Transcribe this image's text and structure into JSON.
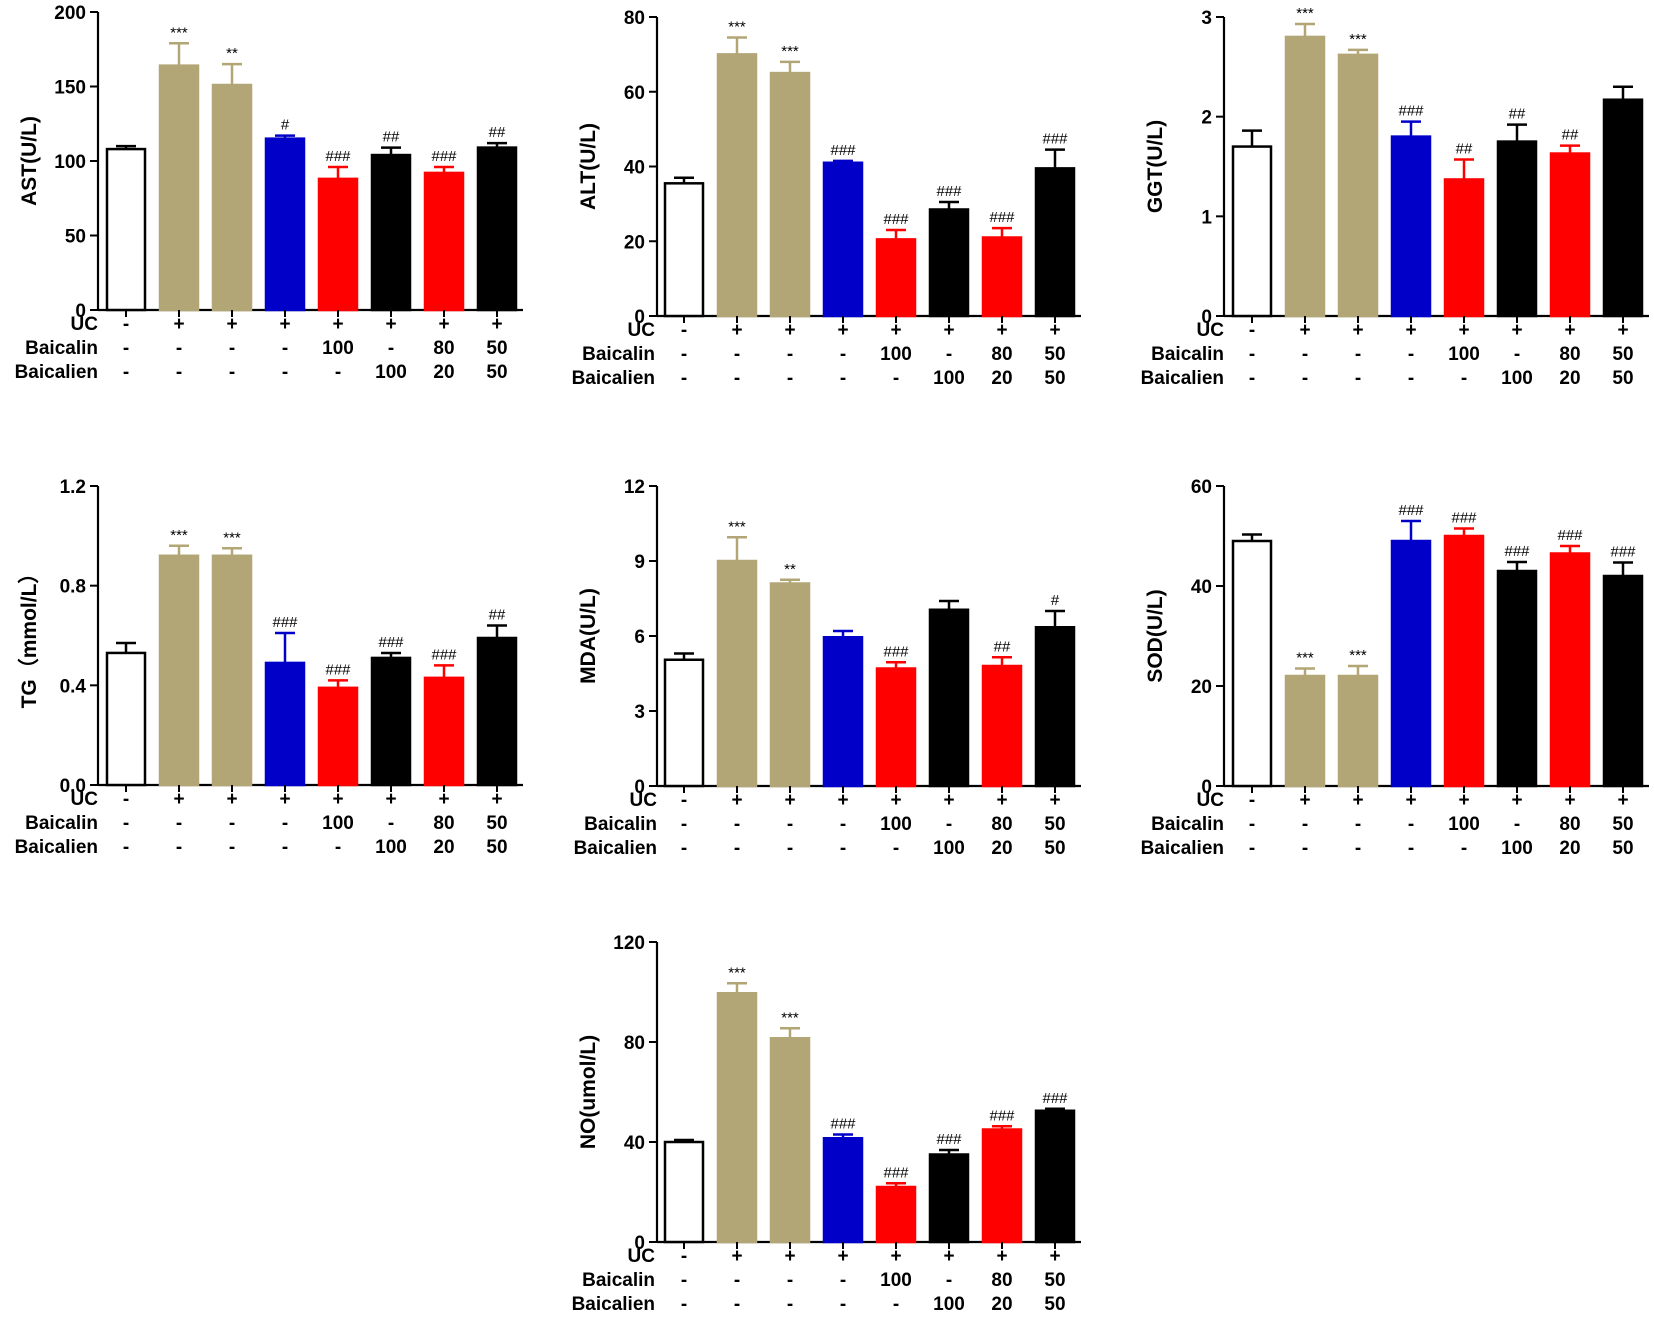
{
  "colors": {
    "control": "#ffffff",
    "model": "#b3a676",
    "blue": "#0000c8",
    "red": "#ff0000",
    "black": "#000000"
  },
  "groups": {
    "labels": [
      "UC",
      "Baicalin",
      "Baicalien"
    ],
    "uc": [
      "-",
      "+",
      "+",
      "+",
      "+",
      "+",
      "+",
      "+"
    ],
    "baicalin": [
      "-",
      "-",
      "-",
      "-",
      "100",
      "-",
      "80",
      "50"
    ],
    "baicalien": [
      "-",
      "-",
      "-",
      "-",
      "-",
      "100",
      "20",
      "50"
    ],
    "bar_colors": [
      "control",
      "model",
      "model",
      "blue",
      "red",
      "black",
      "red",
      "black"
    ]
  },
  "chart_data": [
    {
      "type": "bar",
      "ylabel": "AST(U/L)",
      "ylim": [
        0,
        200
      ],
      "yticks": [
        "0",
        "50",
        "100",
        "150",
        "200"
      ],
      "values": [
        108,
        164,
        151,
        115,
        88,
        104,
        92,
        109
      ],
      "errors": [
        2,
        15,
        14,
        2,
        8,
        5,
        4,
        3
      ],
      "annotations": [
        "",
        "***",
        "**",
        "#",
        "###",
        "##",
        "###",
        "##"
      ]
    },
    {
      "type": "bar",
      "ylabel": "ALT(U/L)",
      "ylim": [
        0,
        80
      ],
      "yticks": [
        "0",
        "20",
        "40",
        "60",
        "80"
      ],
      "values": [
        35.5,
        70,
        65,
        41,
        20.5,
        28.5,
        21,
        39.5
      ],
      "errors": [
        1.5,
        4.5,
        3,
        0.5,
        2.5,
        2,
        2.5,
        5
      ],
      "annotations": [
        "",
        "***",
        "***",
        "###",
        "###",
        "###",
        "###",
        "###"
      ]
    },
    {
      "type": "bar",
      "ylabel": "GGT(U/L)",
      "ylim": [
        0,
        3
      ],
      "yticks": [
        "0",
        "1",
        "2",
        "3"
      ],
      "values": [
        1.7,
        2.8,
        2.62,
        1.8,
        1.37,
        1.75,
        1.63,
        2.17
      ],
      "errors": [
        0.16,
        0.13,
        0.05,
        0.15,
        0.2,
        0.17,
        0.08,
        0.13
      ],
      "annotations": [
        "",
        "***",
        "***",
        "###",
        "##",
        "##",
        "##",
        ""
      ]
    },
    {
      "type": "bar",
      "ylabel": "TG（mmol/L）",
      "ylim": [
        0,
        1.2
      ],
      "yticks": [
        "0.0",
        "0.4",
        "0.8",
        "1.2"
      ],
      "values": [
        0.53,
        0.92,
        0.92,
        0.49,
        0.39,
        0.51,
        0.43,
        0.59
      ],
      "errors": [
        0.04,
        0.04,
        0.03,
        0.12,
        0.03,
        0.02,
        0.05,
        0.05
      ],
      "annotations": [
        "",
        "***",
        "***",
        "###",
        "###",
        "###",
        "###",
        "##"
      ]
    },
    {
      "type": "bar",
      "ylabel": "MDA(U/L)",
      "ylim": [
        0,
        12
      ],
      "yticks": [
        "0",
        "3",
        "6",
        "9",
        "12"
      ],
      "values": [
        5.05,
        9,
        8.1,
        5.95,
        4.7,
        7.05,
        4.8,
        6.35
      ],
      "errors": [
        0.25,
        0.95,
        0.15,
        0.25,
        0.25,
        0.35,
        0.35,
        0.65
      ],
      "annotations": [
        "",
        "***",
        "**",
        "",
        "###",
        "",
        "##",
        "#"
      ]
    },
    {
      "type": "bar",
      "ylabel": "SOD(U/L)",
      "ylim": [
        0,
        60
      ],
      "yticks": [
        "0",
        "20",
        "40",
        "60"
      ],
      "values": [
        49,
        22,
        22,
        49,
        50,
        43,
        46.5,
        42
      ],
      "errors": [
        1.3,
        1.5,
        2,
        4,
        1.5,
        1.8,
        1.5,
        2.7
      ],
      "annotations": [
        "",
        "***",
        "***",
        "###",
        "###",
        "###",
        "###",
        "###"
      ]
    },
    {
      "type": "bar",
      "ylabel": "NO(umol/L)",
      "ylim": [
        0,
        120
      ],
      "yticks": [
        "0",
        "40",
        "80",
        "120"
      ],
      "values": [
        40,
        99.5,
        81.5,
        41.5,
        22,
        35,
        45,
        52.5
      ],
      "errors": [
        0.8,
        4,
        4,
        1.5,
        1.5,
        1.8,
        1.3,
        0.8
      ],
      "annotations": [
        "",
        "***",
        "***",
        "###",
        "###",
        "###",
        "###",
        "###"
      ]
    }
  ]
}
